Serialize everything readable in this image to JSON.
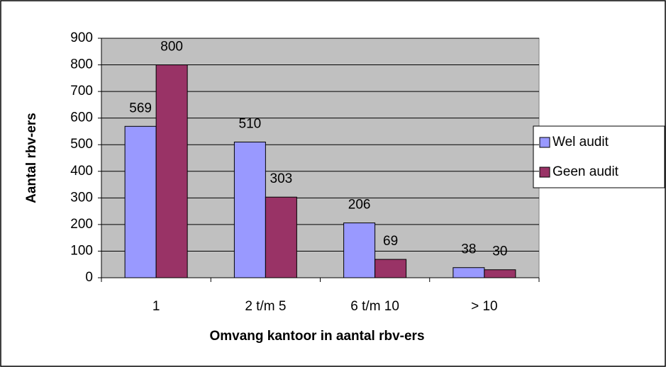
{
  "chart_data": {
    "type": "bar",
    "x_label": "Omvang kantoor in aantal rbv-ers",
    "y_label": "Aantal rbv-ers",
    "categories": [
      "1",
      "2 t/m 5",
      "6 t/m 10",
      "> 10"
    ],
    "series": [
      {
        "name": "Wel audit",
        "color": "#9999ff",
        "values": [
          569,
          510,
          206,
          38
        ]
      },
      {
        "name": "Geen audit",
        "color": "#993366",
        "values": [
          800,
          303,
          69,
          30
        ]
      }
    ],
    "ylim": [
      0,
      900
    ],
    "yticks": [
      0,
      100,
      200,
      300,
      400,
      500,
      600,
      700,
      800,
      900
    ],
    "grid": true,
    "legend": "right"
  }
}
